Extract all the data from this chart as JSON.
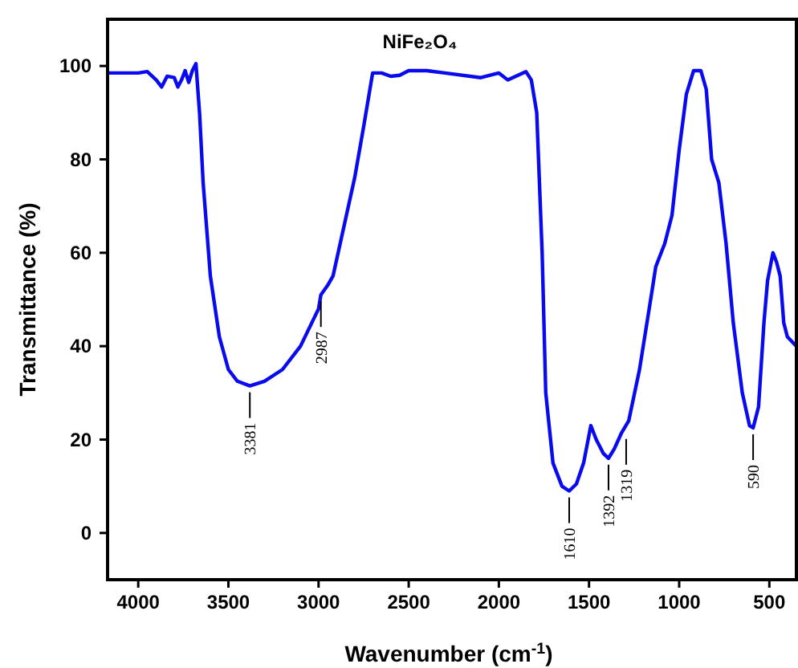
{
  "chart_data": {
    "type": "line",
    "title": "NiFe₂O₄",
    "xlabel": "Wavenumber (cm$^{-1}$)",
    "ylabel": "Transmittance (%)",
    "xlim": [
      4170,
      350
    ],
    "ylim": [
      -10,
      110
    ],
    "xticks": [
      4000,
      3500,
      3000,
      2500,
      2000,
      1500,
      1000,
      500
    ],
    "yticks": [
      0,
      20,
      40,
      60,
      80,
      100
    ],
    "grid": false,
    "marker": "none",
    "line_style": "solid",
    "series": [
      {
        "color": "#0a0aee",
        "x": [
          4170,
          4000,
          3950,
          3900,
          3870,
          3840,
          3800,
          3780,
          3760,
          3740,
          3720,
          3700,
          3680,
          3660,
          3640,
          3600,
          3550,
          3500,
          3450,
          3381,
          3300,
          3200,
          3100,
          3000,
          2987,
          2950,
          2920,
          2880,
          2800,
          2750,
          2700,
          2650,
          2600,
          2550,
          2500,
          2400,
          2300,
          2100,
          2000,
          1950,
          1850,
          1820,
          1790,
          1760,
          1740,
          1700,
          1650,
          1610,
          1570,
          1530,
          1490,
          1460,
          1420,
          1392,
          1360,
          1319,
          1280,
          1220,
          1150,
          1130,
          1080,
          1040,
          1000,
          960,
          920,
          880,
          850,
          820,
          780,
          740,
          700,
          650,
          610,
          590,
          560,
          530,
          510,
          480,
          460,
          440,
          420,
          400,
          350
        ],
        "values": [
          98.5,
          98.5,
          98.8,
          97,
          95.5,
          97.8,
          97.5,
          95.5,
          97,
          99,
          96.5,
          99,
          100.5,
          90,
          75,
          55,
          42,
          35,
          32.5,
          31.5,
          32.5,
          35,
          40,
          48,
          51,
          53,
          55,
          62,
          76,
          87,
          98.5,
          98.5,
          97.8,
          98,
          99,
          99,
          98.5,
          97.5,
          98.5,
          97,
          98.8,
          97,
          90,
          60,
          30,
          15,
          10,
          9,
          10.5,
          15,
          23,
          20,
          17,
          16,
          18,
          21.5,
          24,
          35,
          52,
          57,
          62,
          68,
          82,
          94,
          99,
          99,
          95,
          80,
          75,
          62,
          45,
          30,
          23,
          22.5,
          27,
          45,
          54,
          60,
          58,
          55,
          45,
          42,
          40
        ]
      }
    ],
    "annotations": [
      {
        "text": "3381",
        "x": 3381,
        "y": 31.5
      },
      {
        "text": "2987",
        "x": 2987,
        "y": 51
      },
      {
        "text": "1610",
        "x": 1610,
        "y": 9
      },
      {
        "text": "1392",
        "x": 1392,
        "y": 16
      },
      {
        "text": "1319",
        "x": 1319,
        "y": 21.5
      },
      {
        "text": "590",
        "x": 590,
        "y": 22.5
      }
    ]
  }
}
